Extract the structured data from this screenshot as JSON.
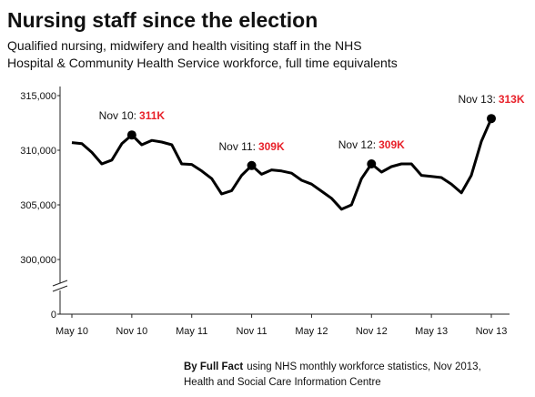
{
  "chart_data": {
    "type": "line",
    "title": "Nursing staff since the election",
    "subtitle": [
      "Qualified nursing, midwifery and health visiting staff in the NHS",
      "Hospital & Community Health Service workforce, full time equivalents"
    ],
    "source_author": "By Full Fact",
    "source_lines": [
      "using NHS monthly workforce statistics, Nov 2013,",
      "Health and Social Care Information Centre"
    ],
    "categories": [
      "May 10",
      null,
      null,
      null,
      null,
      null,
      "Nov 10",
      null,
      null,
      null,
      null,
      null,
      "May 11",
      null,
      null,
      null,
      null,
      null,
      "Nov 11",
      null,
      null,
      null,
      null,
      null,
      "May 12",
      null,
      null,
      null,
      null,
      null,
      "Nov 12",
      null,
      null,
      null,
      null,
      null,
      "May 13",
      null,
      null,
      null,
      null,
      null,
      "Nov 13"
    ],
    "series": [
      {
        "color": "#000000",
        "values": [
          310700,
          310600,
          309800,
          308750,
          309100,
          310600,
          311400,
          310500,
          310900,
          310750,
          310500,
          308750,
          308700,
          308100,
          307400,
          306000,
          306300,
          307700,
          308600,
          307800,
          308200,
          308100,
          307900,
          307250,
          306900,
          306250,
          305600,
          304600,
          305000,
          307400,
          308750,
          308000,
          308500,
          308750,
          308750,
          307700,
          307600,
          307500,
          306900,
          306100,
          307700,
          310800,
          312900
        ],
        "value_labels": [
          null,
          null,
          null,
          null,
          null,
          null,
          "311K",
          null,
          null,
          null,
          null,
          null,
          null,
          null,
          null,
          null,
          null,
          null,
          "309K",
          null,
          null,
          null,
          null,
          null,
          null,
          null,
          null,
          null,
          null,
          null,
          "309K",
          null,
          null,
          null,
          null,
          null,
          null,
          null,
          null,
          null,
          null,
          null,
          "313K"
        ],
        "value_label_titles": [
          null,
          null,
          null,
          null,
          null,
          null,
          "Nov 10:",
          null,
          null,
          null,
          null,
          null,
          null,
          null,
          null,
          null,
          null,
          null,
          "Nov 11:",
          null,
          null,
          null,
          null,
          null,
          null,
          null,
          null,
          null,
          null,
          null,
          "Nov 12:",
          null,
          null,
          null,
          null,
          null,
          null,
          null,
          null,
          null,
          null,
          null,
          "Nov 13:"
        ]
      }
    ],
    "value_label_color": "#e8212a",
    "ylim": [
      0,
      315000
    ],
    "yticks": [
      0,
      {
        "value": 300000,
        "label": "300,000"
      },
      {
        "value": 305000,
        "label": "305,000"
      },
      {
        "value": 310000,
        "label": "310,000"
      },
      {
        "value": 315000,
        "label": "315,000"
      }
    ],
    "y_axis_break": true,
    "grid": false
  }
}
